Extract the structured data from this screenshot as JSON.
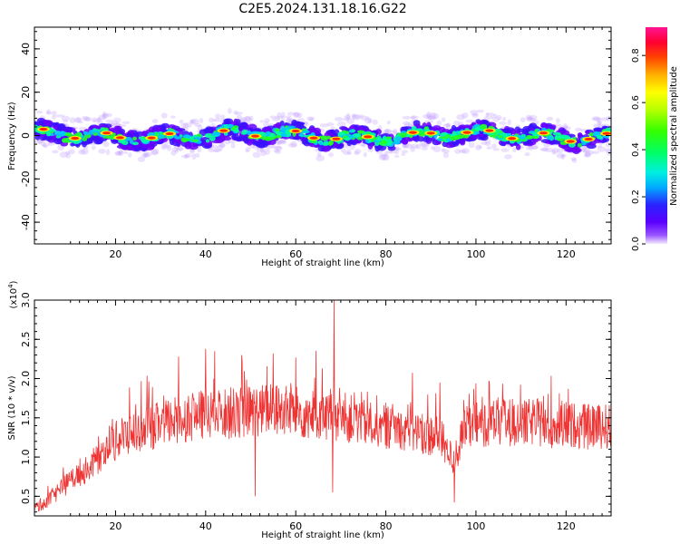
{
  "title": "C2E5.2024.131.18.16.G22",
  "chart_data": [
    {
      "type": "heatmap",
      "xlabel": "Height of straight line (km)",
      "ylabel": "Frequency (Hz)",
      "xlim": [
        2,
        130
      ],
      "ylim": [
        -50,
        50
      ],
      "x_ticks": [
        20,
        40,
        60,
        80,
        100,
        120
      ],
      "y_ticks": [
        -40,
        -20,
        0,
        20,
        40
      ],
      "colorbar": {
        "label": "Normalized spectral amplitude",
        "range": [
          0,
          0.92
        ],
        "ticks": [
          0.0,
          0.2,
          0.4,
          0.6,
          0.8
        ],
        "tick_labels": [
          "0.0",
          "0.2",
          "0.4",
          "0.6",
          "0.8"
        ]
      },
      "ridge": {
        "center_frequency_hz": 0,
        "band_halfwidth_hz": 4,
        "peak_heights_km": [
          4,
          11,
          18,
          21,
          28,
          32,
          44,
          51,
          60,
          64,
          69,
          76,
          86,
          90,
          98,
          103,
          108,
          115,
          121,
          125,
          129
        ]
      }
    },
    {
      "type": "line",
      "xlabel": "Height of straight line (km)",
      "ylabel": "SNR (10 * v/v)",
      "y_multiplier": "(x10",
      "y_multiplier_exp": "4",
      "y_multiplier_close": ")",
      "xlim": [
        2,
        130
      ],
      "ylim": [
        0.25,
        3.0
      ],
      "x_ticks": [
        20,
        40,
        60,
        80,
        100,
        120
      ],
      "y_ticks": [
        0.5,
        1.0,
        1.5,
        2.0,
        2.5,
        3.0
      ],
      "y_tick_labels": [
        "0.5",
        "1.0",
        "1.5",
        "2.0",
        "2.5",
        "3.0"
      ],
      "series": [
        {
          "color": "#ee3333",
          "x": [
            2,
            5,
            8,
            11,
            14,
            17,
            20,
            23,
            26,
            29,
            32,
            35,
            38,
            41,
            44,
            47,
            50,
            53,
            56,
            59,
            62,
            65,
            68,
            71,
            74,
            77,
            80,
            83,
            86,
            89,
            92,
            95,
            98,
            101,
            104,
            107,
            110,
            113,
            116,
            119,
            122,
            125,
            128,
            130
          ],
          "values": [
            0.35,
            0.45,
            0.6,
            0.75,
            0.85,
            1.05,
            1.2,
            1.3,
            1.35,
            1.4,
            1.45,
            1.5,
            1.52,
            1.55,
            1.55,
            1.57,
            1.58,
            1.6,
            1.6,
            1.58,
            1.55,
            1.55,
            1.5,
            1.5,
            1.45,
            1.42,
            1.4,
            1.38,
            1.35,
            1.3,
            1.25,
            0.95,
            1.4,
            1.42,
            1.45,
            1.45,
            1.42,
            1.45,
            1.4,
            1.42,
            1.4,
            1.38,
            1.4,
            1.38
          ],
          "noise_amplitude": 0.32,
          "spikes": [
            [
              34,
              2.28
            ],
            [
              40,
              2.38
            ],
            [
              42,
              2.35
            ],
            [
              48,
              2.3
            ],
            [
              55,
              2.32
            ],
            [
              60,
              2.27
            ],
            [
              68.5,
              3.0
            ],
            [
              68.2,
              0.55
            ],
            [
              51,
              0.5
            ],
            [
              95.2,
              0.42
            ],
            [
              92,
              1.95
            ],
            [
              103,
              1.95
            ],
            [
              115,
              1.78
            ]
          ]
        }
      ]
    }
  ]
}
